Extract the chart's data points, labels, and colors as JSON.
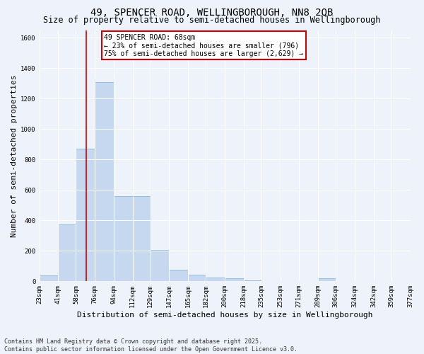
{
  "title": "49, SPENCER ROAD, WELLINGBOROUGH, NN8 2QB",
  "subtitle": "Size of property relative to semi-detached houses in Wellingborough",
  "xlabel": "Distribution of semi-detached houses by size in Wellingborough",
  "ylabel": "Number of semi-detached properties",
  "bin_labels": [
    "23sqm",
    "41sqm",
    "58sqm",
    "76sqm",
    "94sqm",
    "112sqm",
    "129sqm",
    "147sqm",
    "165sqm",
    "182sqm",
    "200sqm",
    "218sqm",
    "235sqm",
    "253sqm",
    "271sqm",
    "289sqm",
    "306sqm",
    "324sqm",
    "342sqm",
    "359sqm",
    "377sqm"
  ],
  "bin_edges": [
    23,
    41,
    58,
    76,
    94,
    112,
    129,
    147,
    165,
    182,
    200,
    218,
    235,
    253,
    271,
    289,
    306,
    324,
    342,
    359,
    377
  ],
  "bar_heights": [
    40,
    375,
    870,
    1310,
    560,
    560,
    205,
    75,
    45,
    25,
    20,
    5,
    0,
    0,
    0,
    20,
    0,
    0,
    0,
    0,
    0
  ],
  "bar_color": "#c5d8f0",
  "bar_edge_color": "#7aaed6",
  "property_line_x": 68,
  "annotation_line1": "49 SPENCER ROAD: 68sqm",
  "annotation_line2": "← 23% of semi-detached houses are smaller (796)",
  "annotation_line3": "75% of semi-detached houses are larger (2,629) →",
  "ylim": [
    0,
    1650
  ],
  "yticks": [
    0,
    200,
    400,
    600,
    800,
    1000,
    1200,
    1400,
    1600
  ],
  "footer_line1": "Contains HM Land Registry data © Crown copyright and database right 2025.",
  "footer_line2": "Contains public sector information licensed under the Open Government Licence v3.0.",
  "bg_color": "#eef2fa",
  "grid_color": "#ffffff",
  "red_line_color": "#cc0000",
  "annotation_box_color": "#ffffff",
  "annotation_border_color": "#cc0000",
  "title_fontsize": 10,
  "subtitle_fontsize": 8.5,
  "axis_label_fontsize": 8,
  "tick_fontsize": 6.5,
  "annotation_fontsize": 7,
  "footer_fontsize": 6
}
